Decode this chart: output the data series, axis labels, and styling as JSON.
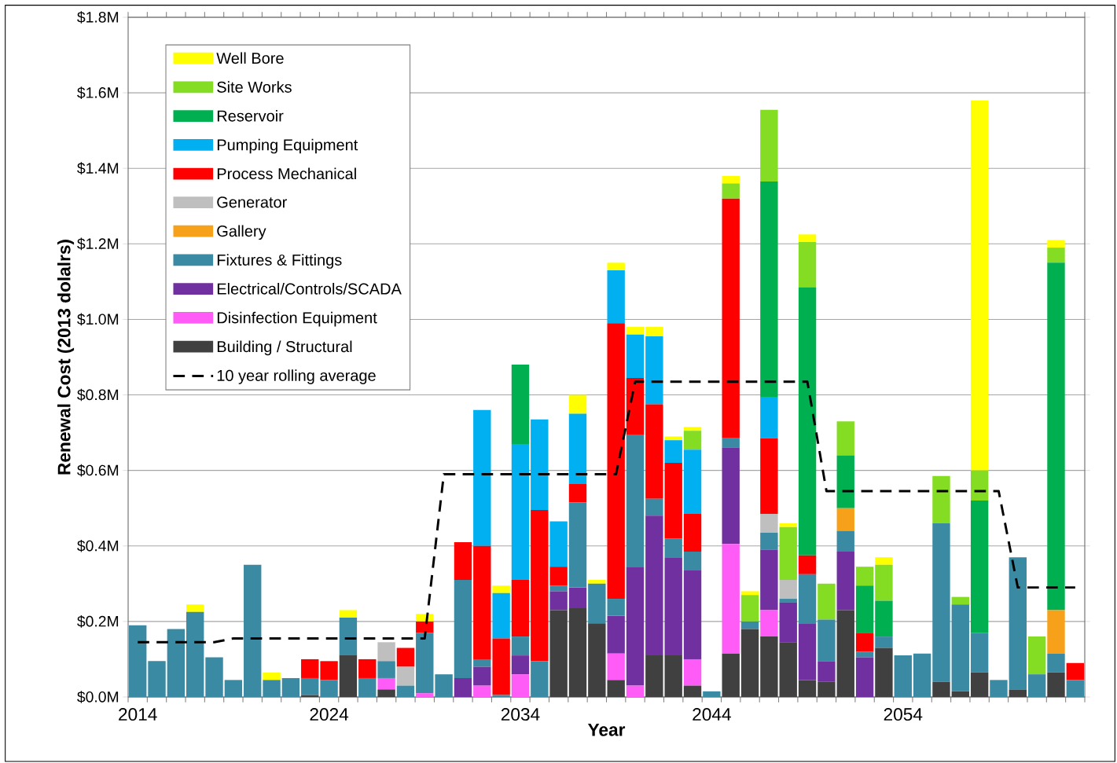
{
  "chart_data": {
    "type": "bar",
    "stacked": true,
    "xlabel": "Year",
    "ylabel": "Renewal Cost  (2013 dolalrs)",
    "categories": [
      "2014",
      null,
      null,
      null,
      null,
      null,
      null,
      null,
      null,
      null,
      "2024",
      null,
      null,
      null,
      null,
      null,
      null,
      null,
      null,
      null,
      "2034",
      null,
      null,
      null,
      null,
      null,
      null,
      null,
      null,
      null,
      "2044",
      null,
      null,
      null,
      null,
      null,
      null,
      null,
      null,
      null,
      "2054",
      null,
      null,
      null,
      null,
      null,
      null,
      null,
      null,
      null
    ],
    "ylim": [
      0,
      1.8
    ],
    "yticks": [
      {
        "value": 0,
        "label": "$0.0M"
      },
      {
        "value": 0.2,
        "label": "$0.2M"
      },
      {
        "value": 0.4,
        "label": "$0.4M"
      },
      {
        "value": 0.6,
        "label": "$0.6M"
      },
      {
        "value": 0.8,
        "label": "$0.8M"
      },
      {
        "value": 1.0,
        "label": "$1.0M"
      },
      {
        "value": 1.2,
        "label": "$1.2M"
      },
      {
        "value": 1.4,
        "label": "$1.4M"
      },
      {
        "value": 1.6,
        "label": "$1.6M"
      },
      {
        "value": 1.8,
        "label": "$1.8M"
      }
    ],
    "grid": "y",
    "legend": "top left",
    "series": [
      {
        "name": "Building / Structural",
        "color": "#404040",
        "values": [
          null,
          null,
          null,
          null,
          null,
          null,
          null,
          null,
          null,
          0.005,
          null,
          0.11,
          null,
          0.02,
          null,
          null,
          null,
          null,
          null,
          null,
          null,
          null,
          0.23,
          0.235,
          0.195,
          0.045,
          null,
          0.11,
          0.11,
          0.03,
          null,
          0.115,
          0.18,
          0.16,
          0.145,
          0.045,
          0.04,
          0.23,
          null,
          0.13,
          null,
          null,
          0.04,
          0.015,
          0.065,
          null,
          0.02,
          null,
          0.065,
          null
        ]
      },
      {
        "name": "Disinfection Equipment",
        "color": "#ff5cf7",
        "values": [
          null,
          null,
          null,
          null,
          null,
          null,
          null,
          null,
          null,
          null,
          null,
          null,
          null,
          0.03,
          null,
          0.01,
          null,
          null,
          0.03,
          null,
          0.06,
          null,
          null,
          null,
          null,
          0.07,
          0.03,
          null,
          null,
          0.07,
          null,
          0.29,
          null,
          0.07,
          null,
          null,
          null,
          null,
          null,
          null,
          null,
          null,
          null,
          null,
          null,
          null,
          null,
          null,
          null,
          null
        ]
      },
      {
        "name": "Electrical/Controls/SCADA",
        "color": "#7030a0",
        "values": [
          null,
          null,
          null,
          null,
          null,
          null,
          null,
          null,
          null,
          null,
          null,
          null,
          null,
          null,
          null,
          null,
          null,
          0.05,
          0.05,
          null,
          0.05,
          null,
          0.05,
          0.055,
          null,
          0.1,
          0.315,
          0.37,
          0.26,
          0.235,
          null,
          0.255,
          null,
          0.16,
          0.105,
          0.15,
          0.055,
          0.155,
          0.105,
          null,
          null,
          null,
          null,
          null,
          null,
          null,
          null,
          null,
          null,
          null
        ]
      },
      {
        "name": "Fixtures & Fittings",
        "color": "#3b8aa3",
        "values": [
          0.19,
          0.095,
          0.18,
          0.225,
          0.105,
          0.045,
          0.35,
          0.045,
          0.05,
          0.045,
          0.045,
          0.1,
          0.05,
          0.045,
          0.03,
          0.16,
          0.06,
          0.26,
          0.02,
          0.005,
          0.05,
          0.095,
          0.015,
          0.225,
          0.105,
          0.045,
          0.35,
          0.045,
          0.05,
          0.05,
          0.015,
          0.025,
          0.02,
          0.045,
          0.01,
          0.13,
          0.11,
          0.055,
          0.015,
          0.03,
          0.11,
          0.115,
          0.42,
          0.23,
          0.105,
          0.045,
          0.35,
          0.06,
          0.05,
          0.045
        ]
      },
      {
        "name": "Gallery",
        "color": "#f7a11a",
        "values": [
          null,
          null,
          null,
          null,
          null,
          null,
          null,
          null,
          null,
          null,
          null,
          null,
          null,
          null,
          null,
          null,
          null,
          null,
          null,
          null,
          null,
          null,
          null,
          null,
          null,
          null,
          null,
          null,
          null,
          null,
          null,
          null,
          null,
          null,
          null,
          null,
          null,
          0.06,
          null,
          null,
          null,
          null,
          null,
          null,
          null,
          null,
          null,
          null,
          0.115,
          null
        ]
      },
      {
        "name": "Generator",
        "color": "#bfbfbf",
        "values": [
          null,
          null,
          null,
          null,
          null,
          null,
          null,
          null,
          null,
          null,
          null,
          null,
          null,
          0.05,
          0.05,
          null,
          null,
          null,
          null,
          null,
          null,
          null,
          null,
          null,
          null,
          null,
          null,
          null,
          null,
          null,
          null,
          null,
          null,
          0.05,
          0.05,
          null,
          null,
          null,
          null,
          null,
          null,
          null,
          null,
          null,
          null,
          null,
          null,
          null,
          null,
          null
        ]
      },
      {
        "name": "Process Mechanical",
        "color": "#ff0000",
        "values": [
          null,
          null,
          null,
          null,
          null,
          null,
          null,
          null,
          null,
          0.05,
          0.05,
          null,
          0.05,
          null,
          0.05,
          0.03,
          null,
          0.1,
          0.3,
          0.15,
          0.15,
          0.4,
          0.05,
          0.05,
          null,
          0.73,
          0.15,
          0.25,
          0.2,
          0.1,
          null,
          0.635,
          null,
          0.2,
          null,
          0.05,
          null,
          null,
          0.05,
          null,
          null,
          null,
          null,
          null,
          null,
          null,
          null,
          null,
          null,
          0.045
        ]
      },
      {
        "name": "Pumping Equipment",
        "color": "#00b0f0",
        "values": [
          null,
          null,
          null,
          null,
          null,
          null,
          null,
          null,
          null,
          null,
          null,
          null,
          null,
          null,
          null,
          null,
          null,
          null,
          0.36,
          0.12,
          0.36,
          0.24,
          0.12,
          0.185,
          null,
          0.14,
          0.115,
          0.18,
          0.06,
          0.17,
          null,
          null,
          null,
          0.11,
          null,
          null,
          null,
          null,
          null,
          null,
          null,
          null,
          null,
          null,
          null,
          null,
          null,
          null,
          null,
          null
        ]
      },
      {
        "name": "Reservoir",
        "color": "#00b050",
        "values": [
          null,
          null,
          null,
          null,
          null,
          null,
          null,
          null,
          null,
          null,
          null,
          null,
          null,
          null,
          null,
          null,
          null,
          null,
          null,
          null,
          0.21,
          null,
          null,
          null,
          null,
          null,
          null,
          null,
          null,
          null,
          null,
          null,
          null,
          0.57,
          null,
          0.71,
          null,
          0.14,
          0.125,
          0.095,
          null,
          null,
          null,
          null,
          0.35,
          null,
          null,
          null,
          0.92,
          null
        ]
      },
      {
        "name": "Site Works",
        "color": "#84dd22",
        "values": [
          null,
          null,
          null,
          null,
          null,
          null,
          null,
          null,
          null,
          null,
          null,
          null,
          null,
          null,
          null,
          null,
          null,
          null,
          null,
          null,
          null,
          null,
          null,
          null,
          null,
          null,
          null,
          null,
          null,
          0.05,
          null,
          0.04,
          0.07,
          0.19,
          0.14,
          0.12,
          0.095,
          0.09,
          0.05,
          0.095,
          null,
          null,
          0.125,
          0.02,
          0.08,
          null,
          null,
          0.1,
          0.04,
          null
        ]
      },
      {
        "name": "Well Bore",
        "color": "#ffff00",
        "values": [
          null,
          null,
          null,
          0.02,
          null,
          null,
          null,
          0.02,
          null,
          null,
          null,
          0.02,
          null,
          null,
          null,
          0.02,
          null,
          null,
          null,
          0.02,
          null,
          null,
          null,
          0.05,
          0.01,
          0.02,
          0.02,
          0.025,
          0.01,
          0.01,
          null,
          0.02,
          0.01,
          null,
          0.01,
          0.02,
          null,
          null,
          null,
          0.02,
          null,
          null,
          null,
          null,
          0.98,
          null,
          null,
          null,
          0.02,
          null
        ]
      },
      {
        "name": "10 year rolling average",
        "type": "line",
        "line_style": "dashed",
        "color": "#000000",
        "values": [
          0.145,
          0.145,
          0.145,
          0.145,
          0.145,
          0.155,
          0.155,
          0.155,
          0.155,
          0.155,
          0.155,
          0.155,
          0.155,
          0.155,
          0.155,
          0.155,
          0.59,
          0.59,
          0.59,
          0.59,
          0.59,
          0.59,
          0.59,
          0.59,
          0.59,
          0.59,
          0.835,
          0.835,
          0.835,
          0.835,
          0.835,
          0.835,
          0.835,
          0.835,
          0.835,
          0.835,
          0.545,
          0.545,
          0.545,
          0.545,
          0.545,
          0.545,
          0.545,
          0.545,
          0.545,
          0.545,
          0.29,
          0.29,
          0.29,
          0.29
        ]
      }
    ]
  }
}
